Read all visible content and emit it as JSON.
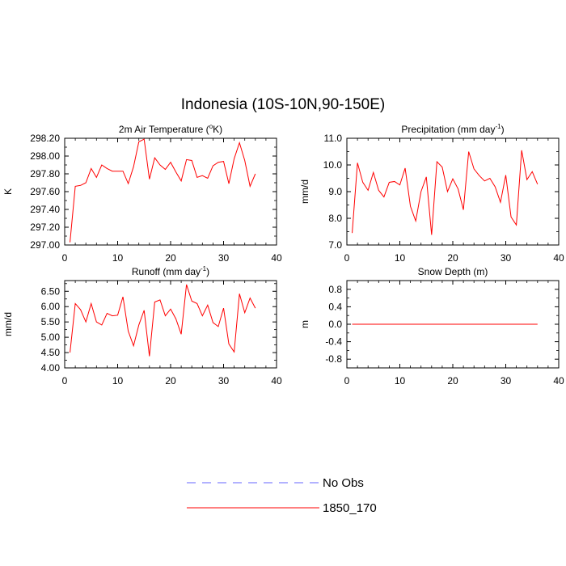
{
  "title": "Indonesia (10S-10N,90-150E)",
  "legend": {
    "entries": [
      {
        "label": "No Obs",
        "color": "#6666ff",
        "dashed": true
      },
      {
        "label": "1850_170",
        "color": "#ff0000",
        "dashed": false
      }
    ]
  },
  "chart_data": [
    {
      "type": "line",
      "title": "2m Air Temperature (°K)",
      "title_main": "2m Air Temperature (",
      "title_sup": "o",
      "title_tail": "K)",
      "ylabel": "K",
      "xlim": [
        0,
        40
      ],
      "ylim": [
        297.0,
        298.2
      ],
      "xticks": [
        0,
        10,
        20,
        30,
        40
      ],
      "xtick_labels": [
        "0",
        "10",
        "20",
        "30",
        "40"
      ],
      "yticks": [
        297.0,
        297.2,
        297.4,
        297.6,
        297.8,
        298.0,
        298.2
      ],
      "ytick_labels": [
        "297.00",
        "297.20",
        "297.40",
        "297.60",
        "297.80",
        "298.00",
        "298.20"
      ],
      "series": [
        {
          "name": "1850_170",
          "color": "#ff0000",
          "x": [
            1,
            2,
            3,
            4,
            5,
            6,
            7,
            8,
            9,
            10,
            11,
            12,
            13,
            14,
            15,
            16,
            17,
            18,
            19,
            20,
            21,
            22,
            23,
            24,
            25,
            26,
            27,
            28,
            29,
            30,
            31,
            32,
            33,
            34,
            35,
            36
          ],
          "values": [
            297.03,
            297.66,
            297.67,
            297.7,
            297.86,
            297.76,
            297.9,
            297.86,
            297.83,
            297.83,
            297.83,
            297.69,
            297.88,
            298.16,
            298.19,
            297.74,
            297.98,
            297.9,
            297.85,
            297.93,
            297.82,
            297.72,
            297.96,
            297.95,
            297.76,
            297.78,
            297.75,
            297.89,
            297.93,
            297.94,
            297.69,
            297.97,
            298.15,
            297.95,
            297.66,
            297.8
          ]
        }
      ]
    },
    {
      "type": "line",
      "title": "Precipitation (mm day-1)",
      "title_main": "Precipitation (mm day",
      "title_sup": "-1",
      "title_tail": ")",
      "ylabel": "mm/d",
      "xlim": [
        0,
        40
      ],
      "ylim": [
        7.0,
        11.0
      ],
      "xticks": [
        0,
        10,
        20,
        30,
        40
      ],
      "xtick_labels": [
        "0",
        "10",
        "20",
        "30",
        "40"
      ],
      "yticks": [
        7.0,
        8.0,
        9.0,
        10.0,
        11.0
      ],
      "ytick_labels": [
        "7.0",
        "8.0",
        "9.0",
        "10.0",
        "11.0"
      ],
      "series": [
        {
          "name": "1850_170",
          "color": "#ff0000",
          "x": [
            1,
            2,
            3,
            4,
            5,
            6,
            7,
            8,
            9,
            10,
            11,
            12,
            13,
            14,
            15,
            16,
            17,
            18,
            19,
            20,
            21,
            22,
            23,
            24,
            25,
            26,
            27,
            28,
            29,
            30,
            31,
            32,
            33,
            34,
            35,
            36
          ],
          "values": [
            7.45,
            10.08,
            9.35,
            9.05,
            9.72,
            9.05,
            8.8,
            9.35,
            9.38,
            9.25,
            9.88,
            8.45,
            7.9,
            9.0,
            9.55,
            7.38,
            10.12,
            9.92,
            9.0,
            9.48,
            9.1,
            8.32,
            10.5,
            9.85,
            9.6,
            9.4,
            9.5,
            9.18,
            8.6,
            9.62,
            8.05,
            7.75,
            10.55,
            9.45,
            9.75,
            9.28
          ]
        }
      ]
    },
    {
      "type": "line",
      "title": "Runoff (mm day-1)",
      "title_main": "Runoff (mm day",
      "title_sup": "-1",
      "title_tail": ")",
      "ylabel": "mm/d",
      "xlim": [
        0,
        40
      ],
      "ylim": [
        4.0,
        6.85
      ],
      "xticks": [
        0,
        10,
        20,
        30,
        40
      ],
      "xtick_labels": [
        "0",
        "10",
        "20",
        "30",
        "40"
      ],
      "yticks": [
        4.0,
        4.5,
        5.0,
        5.5,
        6.0,
        6.5
      ],
      "ytick_labels": [
        "4.00",
        "4.50",
        "5.00",
        "5.50",
        "6.00",
        "6.50"
      ],
      "series": [
        {
          "name": "1850_170",
          "color": "#ff0000",
          "x": [
            1,
            2,
            3,
            4,
            5,
            6,
            7,
            8,
            9,
            10,
            11,
            12,
            13,
            14,
            15,
            16,
            17,
            18,
            19,
            20,
            21,
            22,
            23,
            24,
            25,
            26,
            27,
            28,
            29,
            30,
            31,
            32,
            33,
            34,
            35,
            36
          ],
          "values": [
            4.5,
            6.1,
            5.9,
            5.5,
            6.1,
            5.5,
            5.4,
            5.78,
            5.7,
            5.72,
            6.32,
            5.2,
            4.72,
            5.4,
            5.88,
            4.38,
            6.15,
            6.22,
            5.7,
            5.92,
            5.6,
            5.1,
            6.72,
            6.18,
            6.1,
            5.7,
            6.05,
            5.48,
            5.35,
            5.95,
            4.78,
            4.52,
            6.42,
            5.8,
            6.28,
            5.95
          ]
        }
      ]
    },
    {
      "type": "line",
      "title": "Snow Depth (m)",
      "title_main": "Snow Depth (m)",
      "title_sup": "",
      "title_tail": "",
      "ylabel": "m",
      "xlim": [
        0,
        40
      ],
      "ylim": [
        -1.0,
        1.0
      ],
      "xticks": [
        0,
        10,
        20,
        30,
        40
      ],
      "xtick_labels": [
        "0",
        "10",
        "20",
        "30",
        "40"
      ],
      "yticks": [
        -0.8,
        -0.4,
        0.0,
        0.4,
        0.8
      ],
      "ytick_labels": [
        "-0.8",
        "-0.4",
        "0.0",
        "0.4",
        "0.8"
      ],
      "series": [
        {
          "name": "1850_170",
          "color": "#ff0000",
          "x": [
            1,
            2,
            3,
            4,
            5,
            6,
            7,
            8,
            9,
            10,
            11,
            12,
            13,
            14,
            15,
            16,
            17,
            18,
            19,
            20,
            21,
            22,
            23,
            24,
            25,
            26,
            27,
            28,
            29,
            30,
            31,
            32,
            33,
            34,
            35,
            36
          ],
          "values": [
            0,
            0,
            0,
            0,
            0,
            0,
            0,
            0,
            0,
            0,
            0,
            0,
            0,
            0,
            0,
            0,
            0,
            0,
            0,
            0,
            0,
            0,
            0,
            0,
            0,
            0,
            0,
            0,
            0,
            0,
            0,
            0,
            0,
            0,
            0,
            0
          ]
        }
      ]
    }
  ]
}
